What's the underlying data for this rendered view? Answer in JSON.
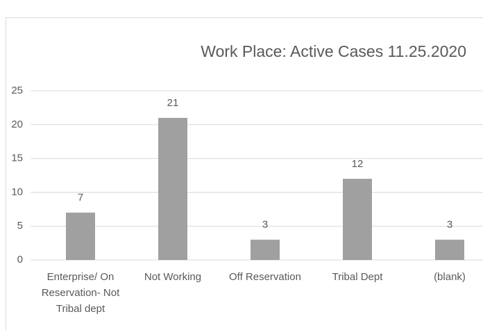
{
  "chart_data": {
    "type": "bar",
    "title": "Work Place: Active Cases 11.25.2020",
    "categories": [
      "Enterprise/ On Reservation- Not Tribal dept",
      "Not Working",
      "Off Reservation",
      "Tribal Dept",
      "(blank)"
    ],
    "values": [
      7,
      21,
      3,
      12,
      3
    ],
    "color": "#a0a0a0",
    "ylim": [
      0,
      25
    ],
    "yticks": [
      0,
      5,
      10,
      15,
      20,
      25
    ],
    "grid": true
  }
}
